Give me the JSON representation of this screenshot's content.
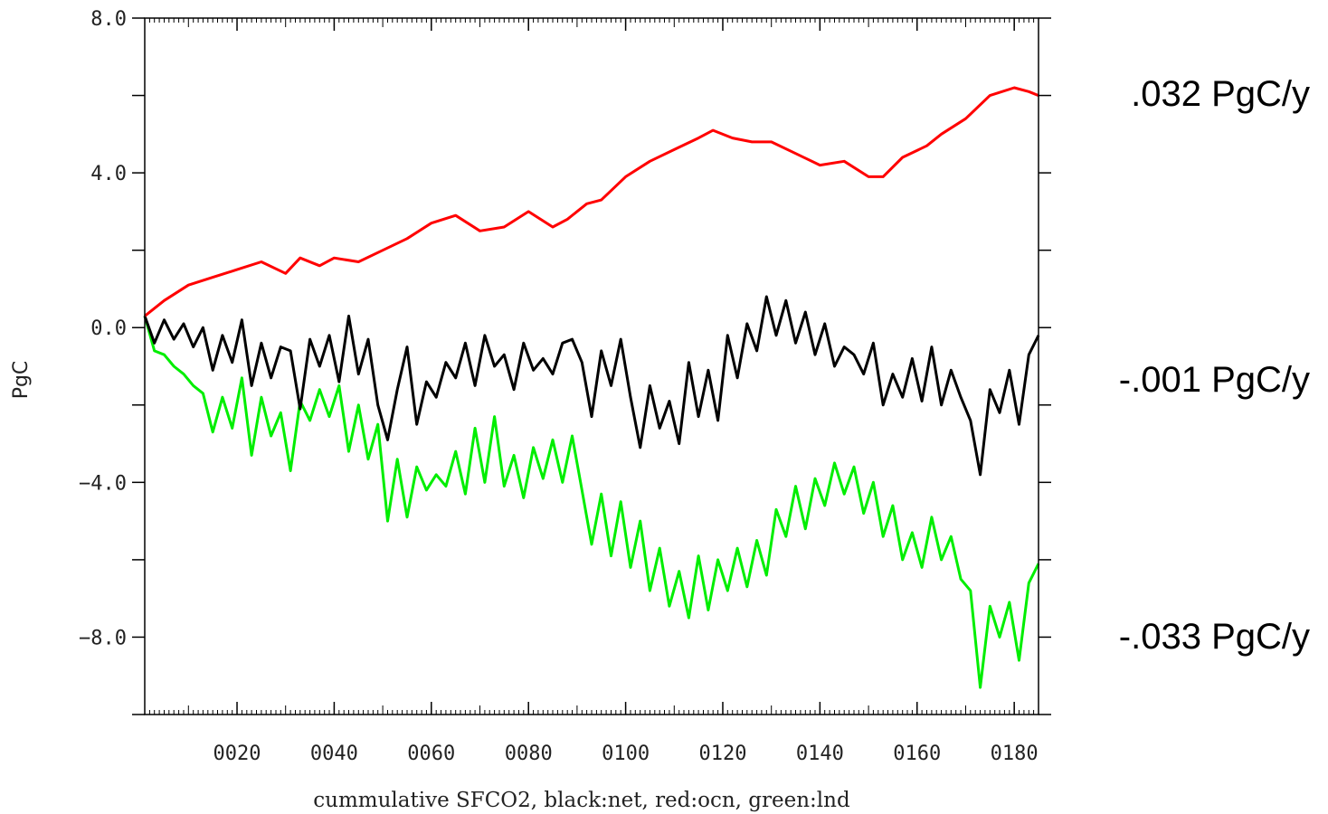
{
  "chart_data": {
    "type": "line",
    "title": "",
    "xlabel": "cummulative SFCO2, black:net, red:ocn, green:lnd",
    "ylabel": "PgC",
    "xlim": [
      1,
      185
    ],
    "ylim": [
      -10,
      8
    ],
    "x_tick_labels": [
      "0020",
      "0040",
      "0060",
      "0080",
      "0100",
      "0120",
      "0140",
      "0160",
      "0180"
    ],
    "x_tick_values": [
      20,
      40,
      60,
      80,
      100,
      120,
      140,
      160,
      180
    ],
    "y_tick_labels": [
      "8.0",
      "4.0",
      "0.0",
      "-4.0",
      "-8.0"
    ],
    "y_tick_values": [
      8,
      4,
      0,
      -4,
      -8
    ],
    "series": [
      {
        "color": "#ff0000",
        "annotation": ".032 PgC/y",
        "x": [
          1,
          5,
          10,
          15,
          20,
          25,
          30,
          33,
          37,
          40,
          45,
          50,
          55,
          60,
          65,
          70,
          75,
          80,
          85,
          88,
          92,
          95,
          100,
          105,
          110,
          115,
          118,
          122,
          126,
          130,
          135,
          140,
          145,
          150,
          153,
          157,
          162,
          165,
          170,
          175,
          180,
          183,
          185
        ],
        "y": [
          0.3,
          0.7,
          1.1,
          1.3,
          1.5,
          1.7,
          1.4,
          1.8,
          1.6,
          1.8,
          1.7,
          2.0,
          2.3,
          2.7,
          2.9,
          2.5,
          2.6,
          3.0,
          2.6,
          2.8,
          3.2,
          3.3,
          3.9,
          4.3,
          4.6,
          4.9,
          5.1,
          4.9,
          4.8,
          4.8,
          4.5,
          4.2,
          4.3,
          3.9,
          3.9,
          4.4,
          4.7,
          5.0,
          5.4,
          6.0,
          6.2,
          6.1,
          6.0
        ]
      },
      {
        "color": "#000000",
        "annotation": "-.001 PgC/y",
        "x": [
          1,
          3,
          5,
          7,
          9,
          11,
          13,
          15,
          17,
          19,
          21,
          23,
          25,
          27,
          29,
          31,
          33,
          35,
          37,
          39,
          41,
          43,
          45,
          47,
          49,
          51,
          53,
          55,
          57,
          59,
          61,
          63,
          65,
          67,
          69,
          71,
          73,
          75,
          77,
          79,
          81,
          83,
          85,
          87,
          89,
          91,
          93,
          95,
          97,
          99,
          101,
          103,
          105,
          107,
          109,
          111,
          113,
          115,
          117,
          119,
          121,
          123,
          125,
          127,
          129,
          131,
          133,
          135,
          137,
          139,
          141,
          143,
          145,
          147,
          149,
          151,
          153,
          155,
          157,
          159,
          161,
          163,
          165,
          167,
          169,
          171,
          173,
          175,
          177,
          179,
          181,
          183,
          185
        ],
        "y": [
          0.3,
          -0.4,
          0.2,
          -0.3,
          0.1,
          -0.5,
          0.0,
          -1.1,
          -0.2,
          -0.9,
          0.2,
          -1.5,
          -0.4,
          -1.3,
          -0.5,
          -0.6,
          -2.1,
          -0.3,
          -1.0,
          -0.2,
          -1.4,
          0.3,
          -1.2,
          -0.3,
          -2.0,
          -2.9,
          -1.6,
          -0.5,
          -2.5,
          -1.4,
          -1.8,
          -0.9,
          -1.3,
          -0.4,
          -1.5,
          -0.2,
          -1.0,
          -0.7,
          -1.6,
          -0.4,
          -1.1,
          -0.8,
          -1.2,
          -0.4,
          -0.3,
          -0.9,
          -2.3,
          -0.6,
          -1.5,
          -0.3,
          -1.8,
          -3.1,
          -1.5,
          -2.6,
          -1.9,
          -3.0,
          -0.9,
          -2.3,
          -1.1,
          -2.4,
          -0.2,
          -1.3,
          0.1,
          -0.6,
          0.8,
          -0.2,
          0.7,
          -0.4,
          0.4,
          -0.7,
          0.1,
          -1.0,
          -0.5,
          -0.7,
          -1.2,
          -0.4,
          -2.0,
          -1.2,
          -1.8,
          -0.8,
          -1.9,
          -0.5,
          -2.0,
          -1.1,
          -1.8,
          -2.4,
          -3.8,
          -1.6,
          -2.2,
          -1.1,
          -2.5,
          -0.7,
          -0.2
        ]
      },
      {
        "color": "#00ee00",
        "annotation": "-.033 PgC/y",
        "x": [
          1,
          3,
          5,
          7,
          9,
          11,
          13,
          15,
          17,
          19,
          21,
          23,
          25,
          27,
          29,
          31,
          33,
          35,
          37,
          39,
          41,
          43,
          45,
          47,
          49,
          51,
          53,
          55,
          57,
          59,
          61,
          63,
          65,
          67,
          69,
          71,
          73,
          75,
          77,
          79,
          81,
          83,
          85,
          87,
          89,
          91,
          93,
          95,
          97,
          99,
          101,
          103,
          105,
          107,
          109,
          111,
          113,
          115,
          117,
          119,
          121,
          123,
          125,
          127,
          129,
          131,
          133,
          135,
          137,
          139,
          141,
          143,
          145,
          147,
          149,
          151,
          153,
          155,
          157,
          159,
          161,
          163,
          165,
          167,
          169,
          171,
          173,
          175,
          177,
          179,
          181,
          183,
          185
        ],
        "y": [
          0.3,
          -0.6,
          -0.7,
          -1.0,
          -1.2,
          -1.5,
          -1.7,
          -2.7,
          -1.8,
          -2.6,
          -1.3,
          -3.3,
          -1.8,
          -2.8,
          -2.2,
          -3.7,
          -1.9,
          -2.4,
          -1.6,
          -2.3,
          -1.5,
          -3.2,
          -2.0,
          -3.4,
          -2.5,
          -5.0,
          -3.4,
          -4.9,
          -3.6,
          -4.2,
          -3.8,
          -4.1,
          -3.2,
          -4.3,
          -2.6,
          -4.0,
          -2.3,
          -4.1,
          -3.3,
          -4.4,
          -3.1,
          -3.9,
          -2.9,
          -4.0,
          -2.8,
          -4.2,
          -5.6,
          -4.3,
          -5.9,
          -4.5,
          -6.2,
          -5.0,
          -6.8,
          -5.7,
          -7.2,
          -6.3,
          -7.5,
          -5.9,
          -7.3,
          -6.0,
          -6.8,
          -5.7,
          -6.7,
          -5.5,
          -6.4,
          -4.7,
          -5.4,
          -4.1,
          -5.2,
          -3.9,
          -4.6,
          -3.5,
          -4.3,
          -3.6,
          -4.8,
          -4.0,
          -5.4,
          -4.6,
          -6.0,
          -5.3,
          -6.2,
          -4.9,
          -6.0,
          -5.4,
          -6.5,
          -6.8,
          -9.3,
          -7.2,
          -8.0,
          -7.1,
          -8.6,
          -6.6,
          -6.1
        ]
      }
    ]
  }
}
